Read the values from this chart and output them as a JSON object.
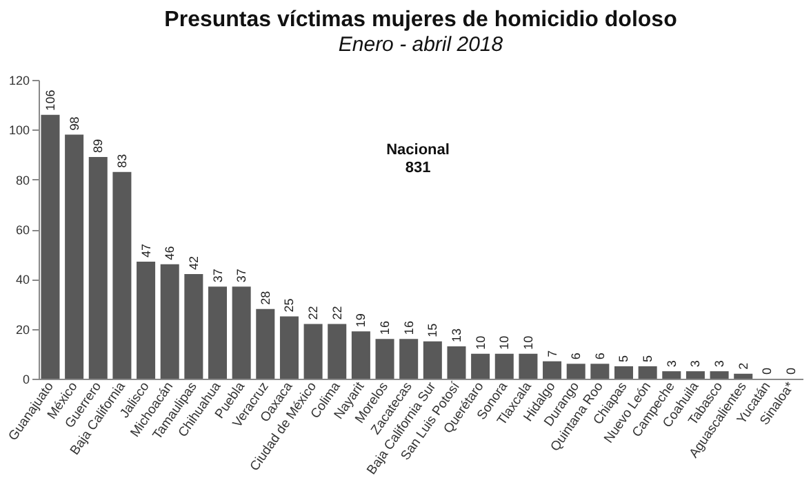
{
  "chart_data": {
    "type": "bar",
    "title": "Presuntas víctimas mujeres de homicidio doloso",
    "subtitle": "Enero - abril 2018",
    "categories": [
      "Guanajuato",
      "México",
      "Guerrero",
      "Baja California",
      "Jalisco",
      "Michoacán",
      "Tamaulipas",
      "Chihuahua",
      "Puebla",
      "Veracruz",
      "Oaxaca",
      "Ciudad de México",
      "Colima",
      "Nayarit",
      "Morelos",
      "Zacatecas",
      "Baja California Sur",
      "San Luis Potosí",
      "Querétaro",
      "Sonora",
      "Tlaxcala",
      "Hidalgo",
      "Durango",
      "Quintana Roo",
      "Chiapas",
      "Nuevo León",
      "Campeche",
      "Coahuila",
      "Tabasco",
      "Aguascalientes",
      "Yucatán",
      "Sinaloa*"
    ],
    "values": [
      106,
      98,
      89,
      83,
      47,
      46,
      42,
      37,
      37,
      28,
      25,
      22,
      22,
      19,
      16,
      16,
      15,
      13,
      10,
      10,
      10,
      7,
      6,
      6,
      5,
      5,
      3,
      3,
      3,
      2,
      0,
      0
    ],
    "color": "#595959",
    "ylim": [
      0,
      120
    ],
    "yticks": [
      0,
      20,
      40,
      60,
      80,
      100,
      120
    ],
    "grid": false,
    "data_labels": true,
    "annotations": [
      "Nacional\n831"
    ]
  }
}
